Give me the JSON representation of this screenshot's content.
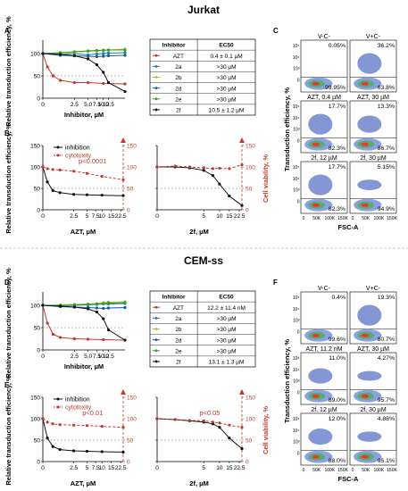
{
  "section_titles": [
    "Jurkat",
    "CEM-ss"
  ],
  "panel_letters": [
    "A",
    "B",
    "C",
    "D",
    "E",
    "F"
  ],
  "axes": {
    "relative_y": "Relative transduction efficiency, %",
    "inhibitor_x": "Inhibitor, µM",
    "cell_viability": "Cell viability, %",
    "azt_x": "AZT, µM",
    "f2_x": "2f, µM",
    "flow_y": "Transduction efficiency, %",
    "flow_x": "FSC-A",
    "y_ticks_a": [
      "0",
      "50",
      "100"
    ],
    "x_ticks_a": [
      "0",
      "2.5",
      "5.0",
      "7.5",
      "10.0",
      "12.5"
    ],
    "x_ticks_az": [
      "0",
      "2.5",
      "5",
      "7.5",
      "10",
      "15",
      "22.5"
    ],
    "x_ticks_2f": [
      "0",
      "5",
      "10",
      "15",
      "22.5"
    ],
    "y2_ticks": [
      "0",
      "50",
      "100",
      "150"
    ],
    "flow_y_ticks": [
      "10⁵",
      "10⁴",
      "10³",
      "0"
    ],
    "flow_x_ticks": [
      "0",
      "50K",
      "100K",
      "150K"
    ]
  },
  "legend_labels": [
    "inhibition",
    "cytotoxity"
  ],
  "colors": {
    "AZT": "#c0392b",
    "2a": "#1f77b4",
    "2b": "#b8c020",
    "2d": "#1a5a9a",
    "2e": "#2ca02c",
    "2f": "#111111",
    "inhibition": "#111111",
    "cytotoxity": "#c0392b"
  },
  "chart_data": [
    {
      "panel": "A",
      "type": "line",
      "xlabel": "Inhibitor, µM",
      "ylabel": "Relative transduction efficiency, %",
      "xlim": [
        0,
        25
      ],
      "ylim": [
        0,
        130
      ],
      "series": [
        {
          "name": "AZT",
          "x": [
            0,
            0.2,
            0.5,
            1,
            2.5,
            5,
            10,
            25
          ],
          "y": [
            100,
            70,
            50,
            40,
            35,
            35,
            33,
            32
          ]
        },
        {
          "name": "2a",
          "x": [
            0,
            1,
            2.5,
            5,
            7.5,
            10,
            12.5,
            25
          ],
          "y": [
            100,
            98,
            100,
            97,
            99,
            100,
            101,
            102
          ]
        },
        {
          "name": "2b",
          "x": [
            0,
            1,
            2.5,
            5,
            7.5,
            10,
            12.5,
            25
          ],
          "y": [
            100,
            101,
            103,
            105,
            106,
            108,
            108,
            110
          ]
        },
        {
          "name": "2d",
          "x": [
            0,
            1,
            2.5,
            5,
            7.5,
            10,
            12.5,
            25
          ],
          "y": [
            100,
            96,
            95,
            94,
            93,
            94,
            95,
            96
          ]
        },
        {
          "name": "2e",
          "x": [
            0,
            1,
            2.5,
            5,
            7.5,
            10,
            12.5,
            25
          ],
          "y": [
            100,
            102,
            104,
            106,
            107,
            107,
            108,
            108
          ]
        },
        {
          "name": "2f",
          "x": [
            0,
            1,
            2.5,
            5,
            7.5,
            10,
            12.5,
            25
          ],
          "y": [
            100,
            98,
            95,
            88,
            75,
            58,
            35,
            15
          ]
        }
      ]
    },
    {
      "panel": "A-table",
      "type": "table",
      "columns": [
        "Inhibitor",
        "EC50"
      ],
      "rows": [
        [
          "AZT",
          "0.4 ± 0.1 µM"
        ],
        [
          "2a",
          ">30 µM"
        ],
        [
          "2b",
          ">30 µM"
        ],
        [
          "2d",
          ">30 µM"
        ],
        [
          "2e",
          ">30 µM"
        ],
        [
          "2f",
          "10.5 ± 1.2 µM"
        ]
      ]
    },
    {
      "panel": "B-AZT",
      "type": "line",
      "xlabel": "AZT, µM",
      "ylabel": "Relative transduction efficiency, %",
      "y2label": "Cell viability, %",
      "xlim": [
        0,
        25
      ],
      "ylim": [
        0,
        150
      ],
      "annotation": "p<0.0001",
      "series": [
        {
          "name": "inhibition",
          "x": [
            0,
            0.2,
            0.5,
            1,
            2.5,
            5,
            10,
            25
          ],
          "y": [
            100,
            65,
            45,
            40,
            36,
            35,
            34,
            33
          ]
        },
        {
          "name": "cytotoxity",
          "x": [
            0,
            0.2,
            0.5,
            1,
            2.5,
            5,
            10,
            25
          ],
          "y": [
            100,
            96,
            94,
            93,
            90,
            85,
            78,
            70
          ]
        }
      ]
    },
    {
      "panel": "B-2f",
      "type": "line",
      "xlabel": "2f, µM",
      "ylabel": "",
      "y2label": "Cell viability, %",
      "xlim": [
        0,
        25
      ],
      "ylim": [
        0,
        150
      ],
      "series": [
        {
          "name": "inhibition",
          "x": [
            0,
            1,
            2.5,
            5,
            7.5,
            10,
            15,
            25
          ],
          "y": [
            100,
            100,
            98,
            92,
            80,
            60,
            32,
            10
          ]
        },
        {
          "name": "cytotoxity",
          "x": [
            0,
            1,
            2.5,
            5,
            7.5,
            10,
            15,
            25
          ],
          "y": [
            100,
            102,
            100,
            98,
            96,
            97,
            96,
            105
          ]
        }
      ]
    },
    {
      "panel": "C",
      "type": "scatter",
      "xlabel": "FSC-A",
      "ylabel": "Transduction efficiency, %",
      "plots": [
        {
          "title": "V-C-",
          "upper": "0.05%",
          "lower": "99.95%"
        },
        {
          "title": "V+C-",
          "upper": "36.2%",
          "lower": "63.8%"
        },
        {
          "title": "AZT, 0.4 µM",
          "upper": "17.7%",
          "lower": "82.3%"
        },
        {
          "title": "AZT, 30 µM",
          "upper": "13.3%",
          "lower": "86.7%"
        },
        {
          "title": "2f, 12 µM",
          "upper": "17.7%",
          "lower": "82.3%"
        },
        {
          "title": "2f, 30 µM",
          "upper": "5.15%",
          "lower": "94.9%"
        }
      ]
    },
    {
      "panel": "D",
      "type": "line",
      "xlabel": "Inhibitor, µM",
      "ylabel": "Relative transduction efficiency, %",
      "xlim": [
        0,
        25
      ],
      "ylim": [
        0,
        130
      ],
      "series": [
        {
          "name": "AZT",
          "x": [
            0,
            0.2,
            0.5,
            1,
            2.5,
            5,
            10,
            25
          ],
          "y": [
            100,
            60,
            35,
            28,
            25,
            24,
            23,
            22
          ]
        },
        {
          "name": "2a",
          "x": [
            0,
            1,
            2.5,
            5,
            7.5,
            10,
            12.5,
            25
          ],
          "y": [
            100,
            99,
            100,
            101,
            102,
            103,
            103,
            104
          ]
        },
        {
          "name": "2b",
          "x": [
            0,
            1,
            2.5,
            5,
            7.5,
            10,
            12.5,
            25
          ],
          "y": [
            100,
            101,
            102,
            103,
            104,
            106,
            107,
            108
          ]
        },
        {
          "name": "2d",
          "x": [
            0,
            1,
            2.5,
            5,
            7.5,
            10,
            12.5,
            25
          ],
          "y": [
            100,
            97,
            96,
            95,
            94,
            93,
            94,
            95
          ]
        },
        {
          "name": "2e",
          "x": [
            0,
            1,
            2.5,
            5,
            7.5,
            10,
            12.5,
            25
          ],
          "y": [
            100,
            100,
            101,
            102,
            103,
            104,
            105,
            106
          ]
        },
        {
          "name": "2f",
          "x": [
            0,
            1,
            2.5,
            5,
            7.5,
            10,
            12.5,
            25
          ],
          "y": [
            100,
            98,
            96,
            92,
            85,
            70,
            45,
            22
          ]
        }
      ]
    },
    {
      "panel": "D-table",
      "type": "table",
      "columns": [
        "Inhibitor",
        "EC50"
      ],
      "rows": [
        [
          "AZT",
          "12.2 ± 11.4 nM"
        ],
        [
          "2a",
          ">30 µM"
        ],
        [
          "2b",
          ">30 µM"
        ],
        [
          "2d",
          ">30 µM"
        ],
        [
          "2e",
          ">30 µM"
        ],
        [
          "2f",
          "13.1 ± 1.3 µM"
        ]
      ]
    },
    {
      "panel": "E-AZT",
      "type": "line",
      "xlabel": "AZT, µM",
      "ylabel": "Relative transduction efficiency, %",
      "y2label": "Cell viability, %",
      "xlim": [
        0,
        25
      ],
      "ylim": [
        0,
        150
      ],
      "annotation": "p<0.01",
      "series": [
        {
          "name": "inhibition",
          "x": [
            0,
            0.2,
            0.5,
            1,
            2.5,
            5,
            10,
            25
          ],
          "y": [
            100,
            55,
            35,
            28,
            25,
            24,
            23,
            22
          ]
        },
        {
          "name": "cytotoxity",
          "x": [
            0,
            0.2,
            0.5,
            1,
            2.5,
            5,
            10,
            25
          ],
          "y": [
            100,
            92,
            88,
            86,
            85,
            84,
            82,
            80
          ]
        }
      ]
    },
    {
      "panel": "E-2f",
      "type": "line",
      "xlabel": "2f, µM",
      "ylabel": "",
      "y2label": "Cell viability, %",
      "annotation": "p<0.05",
      "xlim": [
        0,
        25
      ],
      "ylim": [
        0,
        150
      ],
      "series": [
        {
          "name": "inhibition",
          "x": [
            0,
            1,
            2.5,
            5,
            7.5,
            10,
            15,
            25
          ],
          "y": [
            100,
            98,
            95,
            92,
            88,
            80,
            55,
            30
          ]
        },
        {
          "name": "cytotoxity",
          "x": [
            0,
            1,
            2.5,
            5,
            7.5,
            10,
            15,
            25
          ],
          "y": [
            100,
            98,
            96,
            95,
            92,
            90,
            85,
            80
          ]
        }
      ]
    },
    {
      "panel": "F",
      "type": "scatter",
      "xlabel": "FSC-A",
      "ylabel": "Transduction efficiency, %",
      "plots": [
        {
          "title": "V-C-",
          "upper": "0.4%",
          "lower": "99.6%"
        },
        {
          "title": "V+C-",
          "upper": "19.3%",
          "lower": "80.7%"
        },
        {
          "title": "AZT, 11.2 nM",
          "upper": "11.0%",
          "lower": "89.0%"
        },
        {
          "title": "AZT, 30 µM",
          "upper": "4.27%",
          "lower": "95.7%"
        },
        {
          "title": "2f, 12 µM",
          "upper": "12.0%",
          "lower": "88.0%"
        },
        {
          "title": "2f, 30 µM",
          "upper": "4.88%",
          "lower": "95.1%"
        }
      ]
    }
  ]
}
